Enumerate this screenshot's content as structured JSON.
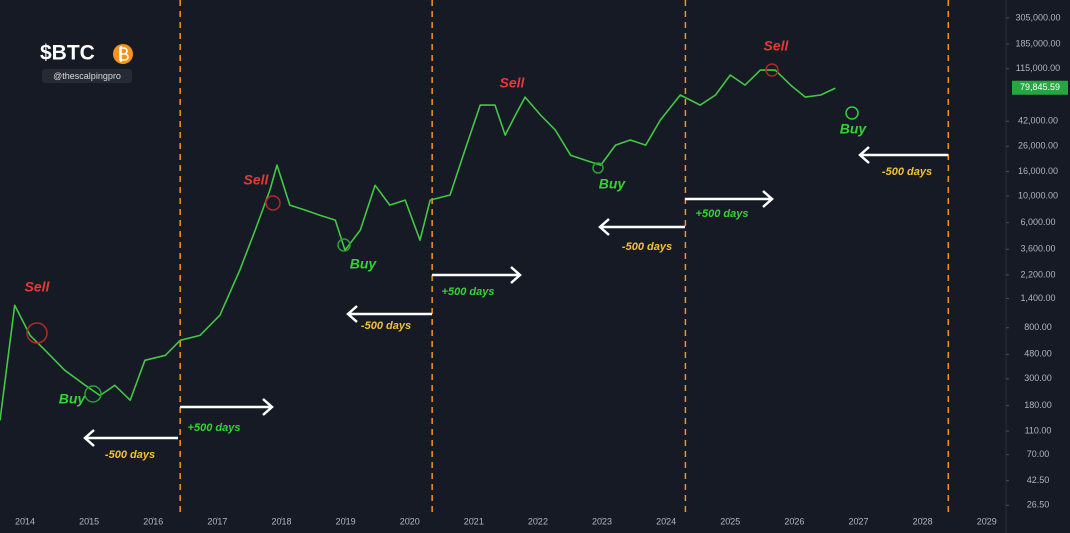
{
  "chart_data": {
    "type": "line",
    "title": "$BTC",
    "subtitle": "@thescalpingpro",
    "log_scale": true,
    "color": "#43c743",
    "x": [
      2013.61,
      2013.84,
      2014.08,
      2014.31,
      2014.62,
      2014.94,
      2015.17,
      2015.4,
      2015.64,
      2015.87,
      2016.19,
      2016.42,
      2016.73,
      2017.04,
      2017.35,
      2017.59,
      2017.82,
      2017.93,
      2018.13,
      2018.37,
      2018.6,
      2018.84,
      2018.99,
      2019.23,
      2019.46,
      2019.69,
      2019.93,
      2020.16,
      2020.32,
      2020.63,
      2020.86,
      2021.1,
      2021.33,
      2021.49,
      2021.65,
      2021.8,
      2022.04,
      2022.27,
      2022.51,
      2022.74,
      2022.98,
      2023.21,
      2023.44,
      2023.68,
      2023.91,
      2024.22,
      2024.53,
      2024.77,
      2025.0,
      2025.23,
      2025.47,
      2025.7,
      2025.94,
      2026.17,
      2026.41,
      2026.64
    ],
    "values": [
      135,
      1230,
      690,
      520,
      353,
      265,
      218,
      265,
      199,
      428,
      471,
      628,
      690,
      1016,
      2410,
      5200,
      11200,
      18100,
      8400,
      7640,
      6930,
      6300,
      3540,
      5200,
      12300,
      8400,
      9250,
      4290,
      9250,
      10200,
      24100,
      57300,
      57300,
      32200,
      47300,
      66800,
      47300,
      35500,
      21900,
      19900,
      18100,
      26600,
      29300,
      26600,
      43000,
      69500,
      57300,
      69500,
      102000,
      84100,
      112000,
      112000,
      84100,
      66800,
      69500,
      79400
    ],
    "xlim": [
      2013.61,
      2029.3
    ],
    "ylim": [
      22,
      430000
    ],
    "xticks": [
      2014,
      2015,
      2016,
      2017,
      2018,
      2019,
      2020,
      2021,
      2022,
      2023,
      2024,
      2025,
      2026,
      2027,
      2028,
      2029
    ],
    "yticks": [
      {
        "value": 305000,
        "label": "305,000.00"
      },
      {
        "value": 185000,
        "label": "185,000.00"
      },
      {
        "value": 115000,
        "label": "115,000.00"
      },
      {
        "value": 42000,
        "label": "42,000.00"
      },
      {
        "value": 26000,
        "label": "26,000.00"
      },
      {
        "value": 16000,
        "label": "16,000.00"
      },
      {
        "value": 10000,
        "label": "10,000.00"
      },
      {
        "value": 6000,
        "label": "6,000.00"
      },
      {
        "value": 3600,
        "label": "3,600.00"
      },
      {
        "value": 2200,
        "label": "2,200.00"
      },
      {
        "value": 1400,
        "label": "1,400.00"
      },
      {
        "value": 800,
        "label": "800.00"
      },
      {
        "value": 480,
        "label": "480.00"
      },
      {
        "value": 300,
        "label": "300.00"
      },
      {
        "value": 180,
        "label": "180.00"
      },
      {
        "value": 110,
        "label": "110.00"
      },
      {
        "value": 70,
        "label": "70.00"
      },
      {
        "value": 42.5,
        "label": "42.50"
      },
      {
        "value": 26.5,
        "label": "26.50"
      }
    ],
    "last_price": {
      "value": 79845.59,
      "label": "79,845.59"
    },
    "vlines": [
      2016.42,
      2020.35,
      2024.3,
      2028.4
    ],
    "vline_color": "#f7931a",
    "annotations": [
      "Sell",
      "Buy",
      "Sell",
      "Buy",
      "Sell",
      "Buy",
      "Sell",
      "Buy",
      "-500 days",
      "+500 days",
      "-500 days",
      "+500 days",
      "-500 days",
      "+500 days",
      "-500 days"
    ]
  }
}
